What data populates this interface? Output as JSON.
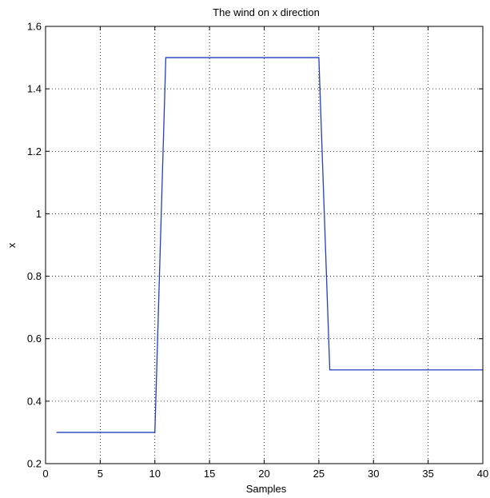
{
  "chart_data": {
    "type": "line",
    "title": "The wind on x direction",
    "xlabel": "Samples",
    "ylabel": "x",
    "xlim": [
      0,
      40
    ],
    "ylim": [
      0.2,
      1.6
    ],
    "xticks": [
      0,
      5,
      10,
      15,
      20,
      25,
      30,
      35,
      40
    ],
    "yticks": [
      0.2,
      0.4,
      0.6,
      0.8,
      1,
      1.2,
      1.4,
      1.6
    ],
    "xtick_labels": [
      "0",
      "5",
      "10",
      "15",
      "20",
      "25",
      "30",
      "35",
      "40"
    ],
    "ytick_labels": [
      "0.2",
      "0.4",
      "0.6",
      "0.8",
      "1",
      "1.2",
      "1.4",
      "1.6"
    ],
    "grid": true,
    "series": [
      {
        "color": "#1f3fbf",
        "x": [
          1,
          10,
          11,
          25,
          26,
          40
        ],
        "y": [
          0.3,
          0.3,
          1.5,
          1.5,
          0.5,
          0.5
        ]
      }
    ]
  }
}
